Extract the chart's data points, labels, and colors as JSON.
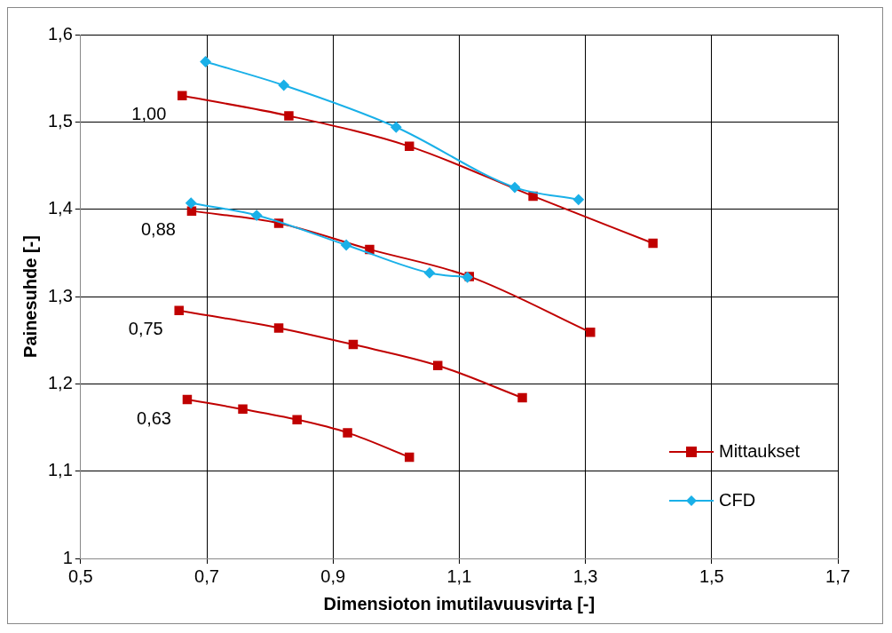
{
  "chart_data": {
    "type": "line",
    "xlabel": "Dimensioton imutilavuusvirta [-]",
    "ylabel": "Painesuhde [-]",
    "xlim": [
      0.5,
      1.7
    ],
    "xticks": [
      {
        "value": 0.5,
        "label": "0,5"
      },
      {
        "value": 0.7,
        "label": "0,7"
      },
      {
        "value": 0.9,
        "label": "0,9"
      },
      {
        "value": 1.1,
        "label": "1,1"
      },
      {
        "value": 1.3,
        "label": "1,3"
      },
      {
        "value": 1.5,
        "label": "1,5"
      },
      {
        "value": 1.7,
        "label": "1,7"
      }
    ],
    "ylim": [
      1,
      1.6
    ],
    "yticks": [
      {
        "value": 1,
        "label": "1"
      },
      {
        "value": 1.1,
        "label": "1,1"
      },
      {
        "value": 1.2,
        "label": "1,2"
      },
      {
        "value": 1.3,
        "label": "1,3"
      },
      {
        "value": 1.4,
        "label": "1,4"
      },
      {
        "value": 1.5,
        "label": "1,5"
      },
      {
        "value": 1.6,
        "label": "1,6"
      }
    ],
    "grid": true,
    "legend": "bottom right",
    "series": [
      {
        "name": "Mittaukset",
        "color": "#c00000",
        "marker": "square",
        "x": [
          0.661,
          0.83,
          1.021,
          1.217,
          1.407
        ],
        "values": [
          1.53,
          1.507,
          1.472,
          1.415,
          1.361
        ]
      },
      {
        "color": "#c00000",
        "marker": "square",
        "x": [
          0.676,
          0.814,
          0.958,
          1.116,
          1.308
        ],
        "values": [
          1.398,
          1.384,
          1.354,
          1.323,
          1.259
        ]
      },
      {
        "color": "#c00000",
        "marker": "square",
        "x": [
          0.656,
          0.814,
          0.932,
          1.066,
          1.2
        ],
        "values": [
          1.284,
          1.264,
          1.245,
          1.221,
          1.184
        ]
      },
      {
        "color": "#c00000",
        "marker": "square",
        "x": [
          0.669,
          0.757,
          0.843,
          0.923,
          1.021
        ],
        "values": [
          1.182,
          1.171,
          1.159,
          1.144,
          1.116
        ]
      },
      {
        "name": "CFD",
        "color": "#1ab0e8",
        "marker": "diamond",
        "x": [
          0.698,
          0.822,
          1.0,
          1.188,
          1.289
        ],
        "values": [
          1.569,
          1.542,
          1.494,
          1.425,
          1.411
        ]
      },
      {
        "color": "#1ab0e8",
        "marker": "diamond",
        "x": [
          0.675,
          0.779,
          0.921,
          1.053,
          1.113
        ],
        "values": [
          1.407,
          1.393,
          1.359,
          1.327,
          1.322
        ]
      }
    ],
    "annotations": [
      {
        "text": "1,00",
        "x": 0.661,
        "y": 1.53
      },
      {
        "text": "0,88",
        "x": 0.676,
        "y": 1.398
      },
      {
        "text": "0,75",
        "x": 0.656,
        "y": 1.284
      },
      {
        "text": "0,63",
        "x": 0.669,
        "y": 1.182
      }
    ]
  }
}
